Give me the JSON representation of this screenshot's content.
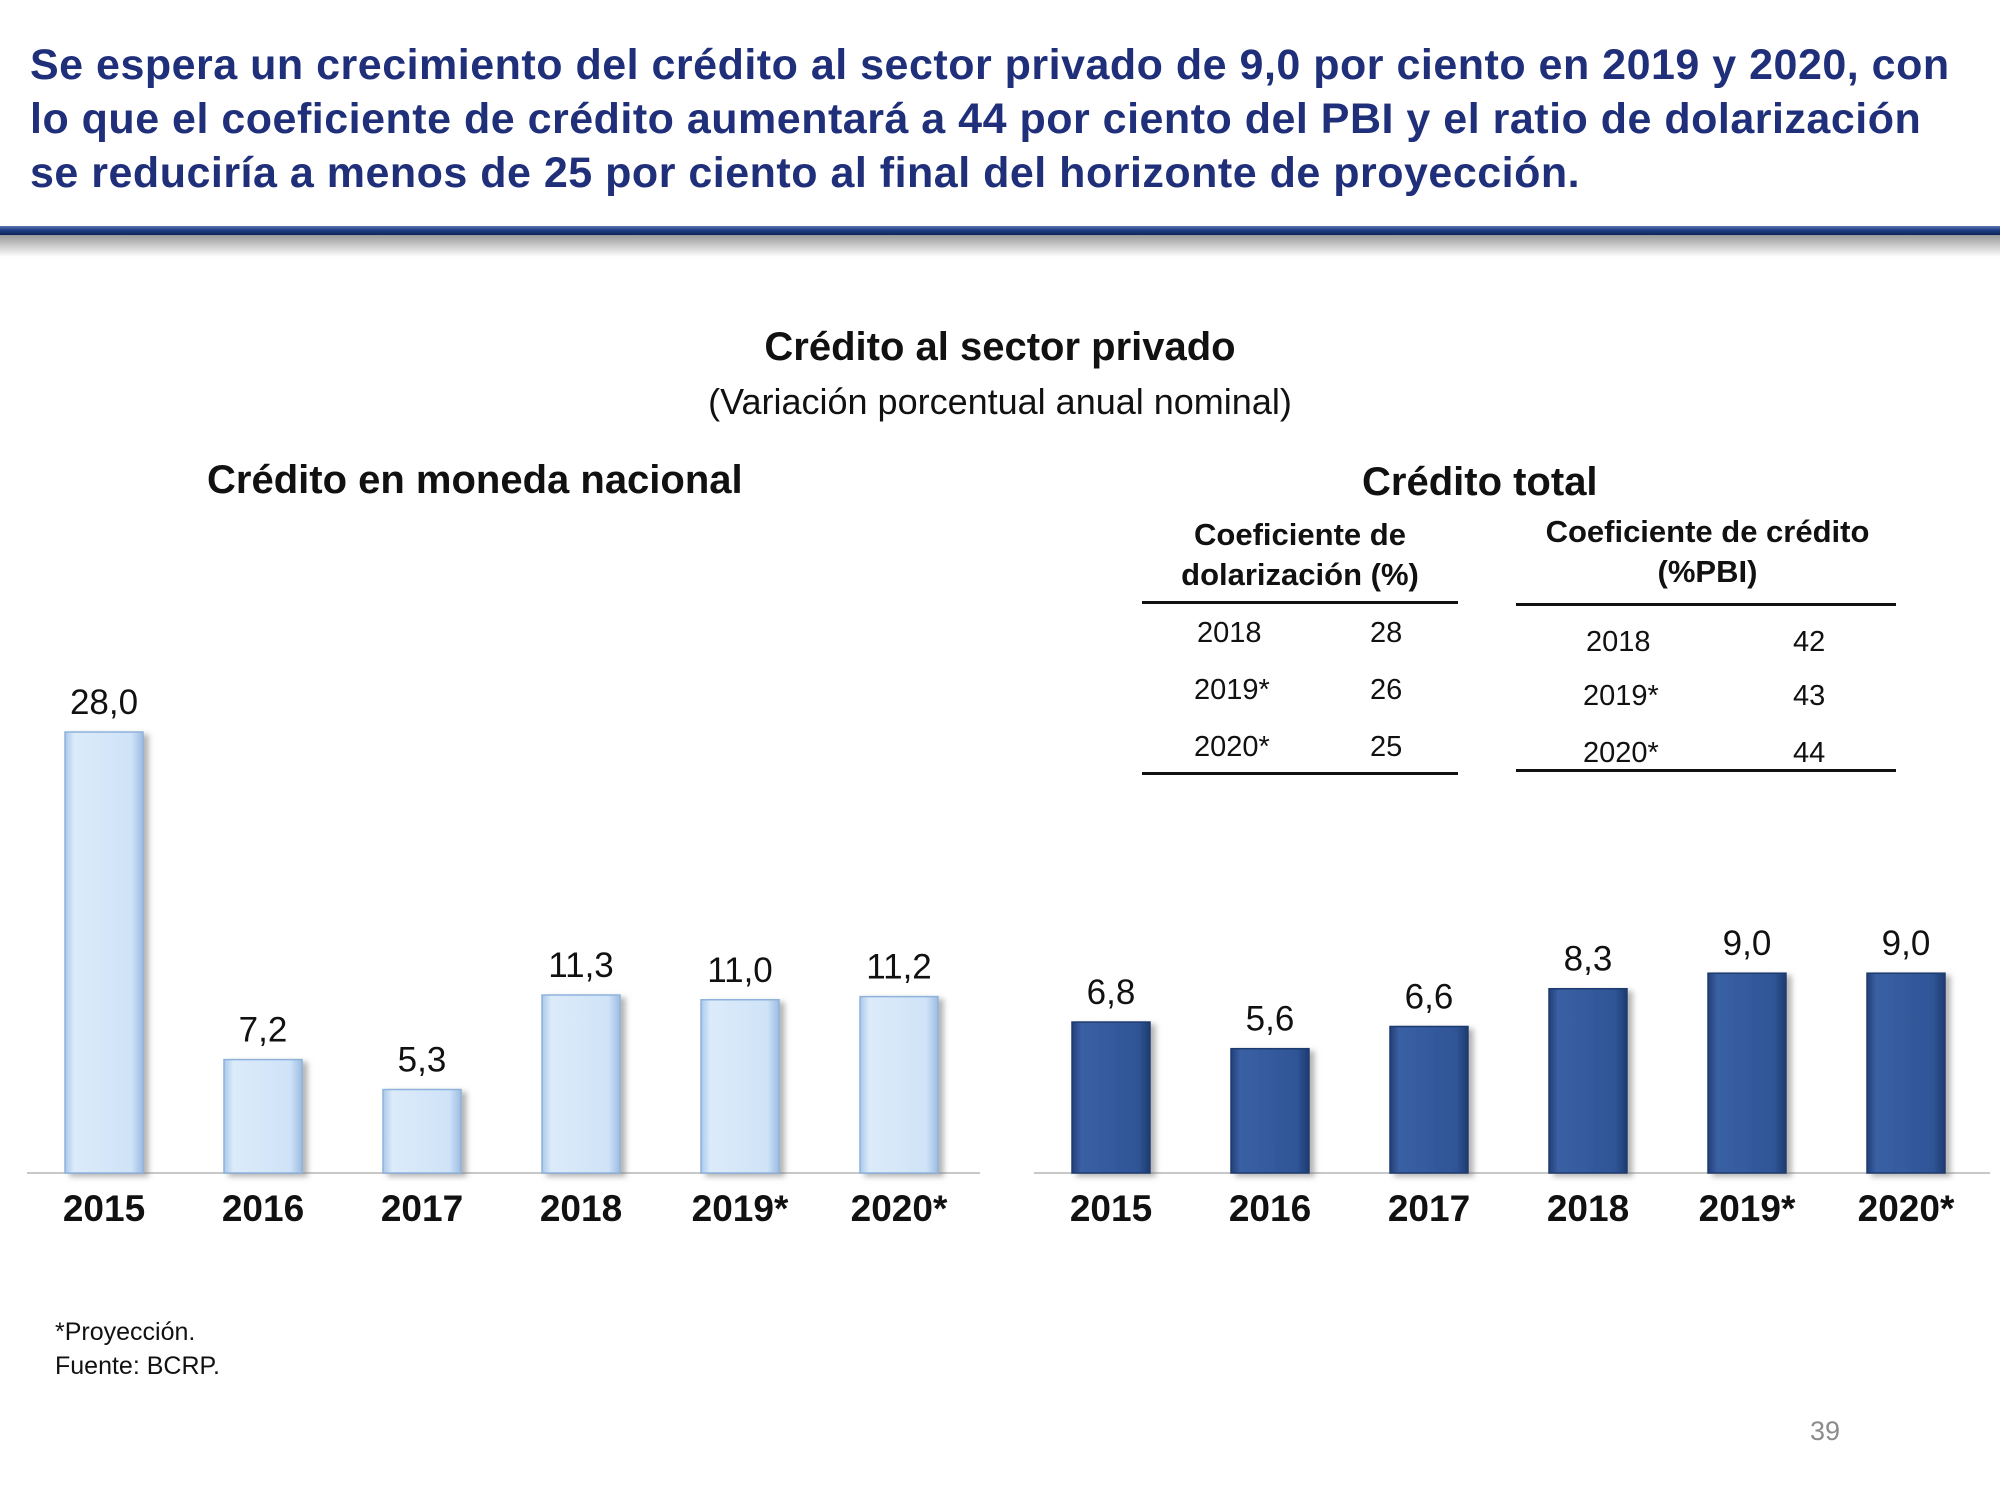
{
  "headline": "Se espera un crecimiento del crédito al sector privado de 9,0 por ciento en 2019 y 2020, con lo que el coeficiente de crédito aumentará a 44 por ciento del PBI y el ratio de dolarización se reduciría a menos de 25 por ciento al final del horizonte de proyección.",
  "chart_title": "Crédito al sector privado",
  "chart_subtitle": "(Variación porcentual anual nominal)",
  "tables": {
    "dolarizacion": {
      "title": "Coeficiente de dolarización (%)",
      "rows": [
        [
          "2018",
          "28"
        ],
        [
          "2019*",
          "26"
        ],
        [
          "2020*",
          "25"
        ]
      ]
    },
    "credito_pbi": {
      "title": "Coeficiente de crédito (%PBI)",
      "rows": [
        [
          "2018",
          "42"
        ],
        [
          "2019*",
          "43"
        ],
        [
          "2020*",
          "44"
        ]
      ]
    }
  },
  "chart_data": [
    {
      "type": "bar",
      "title": "Crédito en moneda nacional",
      "categories": [
        "2015",
        "2016",
        "2017",
        "2018",
        "2019*",
        "2020*"
      ],
      "values": [
        28.0,
        7.2,
        5.3,
        11.3,
        11.0,
        11.2
      ],
      "value_labels": [
        "28,0",
        "7,2",
        "5,3",
        "11,3",
        "11,0",
        "11,2"
      ],
      "ylim": [
        0,
        28
      ],
      "color": "#cfe3f8",
      "grid": false
    },
    {
      "type": "bar",
      "title": "Crédito total",
      "categories": [
        "2015",
        "2016",
        "2017",
        "2018",
        "2019*",
        "2020*"
      ],
      "values": [
        6.8,
        5.6,
        6.6,
        8.3,
        9.0,
        9.0
      ],
      "value_labels": [
        "6,8",
        "5,6",
        "6,6",
        "8,3",
        "9,0",
        "9,0"
      ],
      "ylim": [
        0,
        16
      ],
      "color": "#2f5597",
      "grid": false
    }
  ],
  "notes": {
    "projection": "*Proyección.",
    "source": "Fuente: BCRP."
  },
  "page_number": "39"
}
